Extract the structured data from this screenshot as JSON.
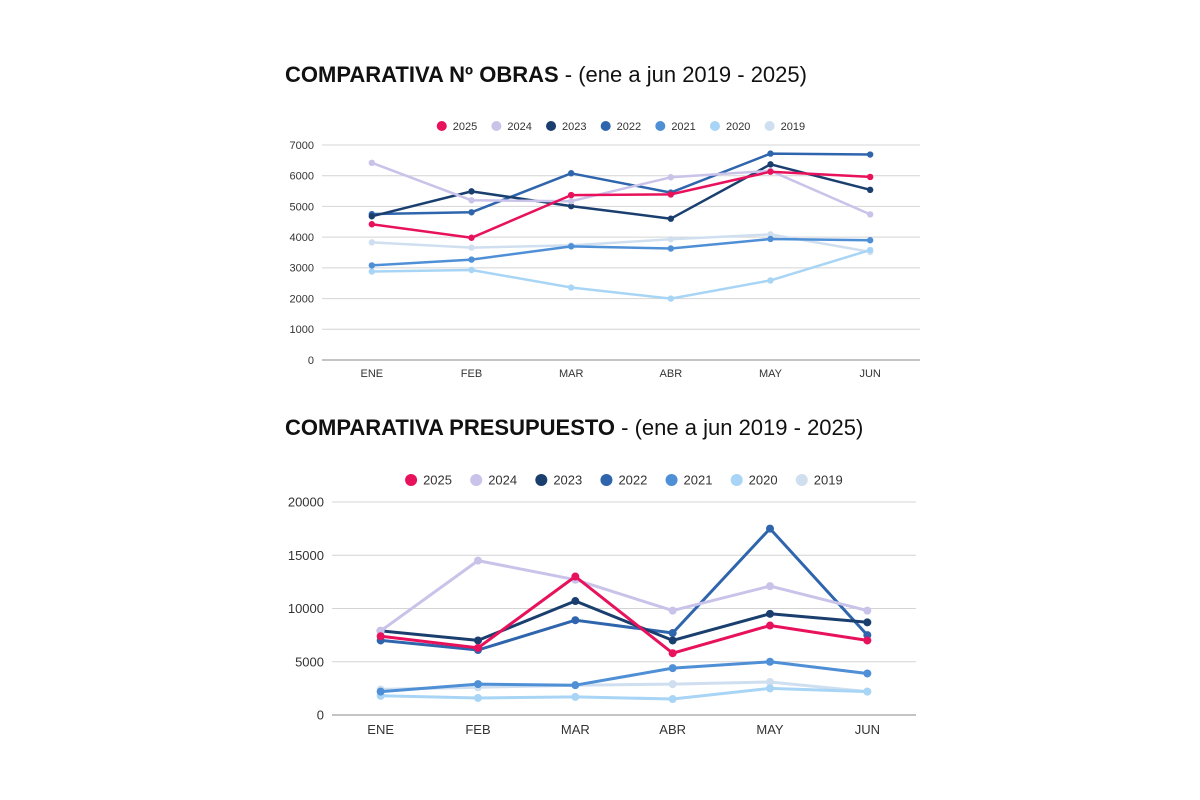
{
  "chart_data": [
    {
      "type": "line",
      "title": "COMPARATIVA Nº OBRAS",
      "subtitle": "- (ene a jun 2019 - 2025)",
      "categories": [
        "ENE",
        "FEB",
        "MAR",
        "ABR",
        "MAY",
        "JUN"
      ],
      "ylim": [
        0,
        7000
      ],
      "yticks": [
        0,
        1000,
        2000,
        3000,
        4000,
        5000,
        6000,
        7000
      ],
      "grid": true,
      "legend_position": "top",
      "series": [
        {
          "name": "2025",
          "color": "#e8115b",
          "values": [
            4420,
            3980,
            5370,
            5390,
            6130,
            5960
          ]
        },
        {
          "name": "2024",
          "color": "#c9c3ea",
          "values": [
            6420,
            5200,
            5170,
            5950,
            6160,
            4740
          ]
        },
        {
          "name": "2023",
          "color": "#1a3f6f",
          "values": [
            4680,
            5490,
            5010,
            4600,
            6370,
            5540
          ]
        },
        {
          "name": "2022",
          "color": "#2f65ad",
          "values": [
            4750,
            4810,
            6080,
            5450,
            6720,
            6690
          ]
        },
        {
          "name": "2021",
          "color": "#4f8fd6",
          "values": [
            3080,
            3270,
            3700,
            3630,
            3940,
            3900
          ]
        },
        {
          "name": "2020",
          "color": "#a8d5f5",
          "values": [
            2880,
            2930,
            2360,
            2000,
            2590,
            3580
          ]
        },
        {
          "name": "2019",
          "color": "#cfdff0",
          "values": [
            3830,
            3660,
            3730,
            3930,
            4090,
            3520
          ]
        }
      ]
    },
    {
      "type": "line",
      "title": "COMPARATIVA PRESUPUESTO",
      "subtitle": "- (ene a jun 2019 - 2025)",
      "categories": [
        "ENE",
        "FEB",
        "MAR",
        "ABR",
        "MAY",
        "JUN"
      ],
      "ylim": [
        0,
        20000
      ],
      "yticks": [
        0,
        5000,
        10000,
        15000,
        20000
      ],
      "grid": true,
      "legend_position": "top",
      "series": [
        {
          "name": "2025",
          "color": "#e8115b",
          "values": [
            7400,
            6300,
            13000,
            5800,
            8400,
            7000
          ]
        },
        {
          "name": "2024",
          "color": "#c9c3ea",
          "values": [
            7900,
            14500,
            12700,
            9800,
            12100,
            9800
          ]
        },
        {
          "name": "2023",
          "color": "#1a3f6f",
          "values": [
            7900,
            7000,
            10700,
            7000,
            9500,
            8700
          ]
        },
        {
          "name": "2022",
          "color": "#2f65ad",
          "values": [
            7000,
            6100,
            8900,
            7700,
            17500,
            7500
          ]
        },
        {
          "name": "2021",
          "color": "#4f8fd6",
          "values": [
            2200,
            2900,
            2800,
            4400,
            5000,
            3900
          ]
        },
        {
          "name": "2020",
          "color": "#a8d5f5",
          "values": [
            1800,
            1600,
            1700,
            1500,
            2500,
            2200
          ]
        },
        {
          "name": "2019",
          "color": "#cfdff0",
          "values": [
            2400,
            2600,
            2800,
            2900,
            3100,
            2200
          ]
        }
      ]
    }
  ]
}
